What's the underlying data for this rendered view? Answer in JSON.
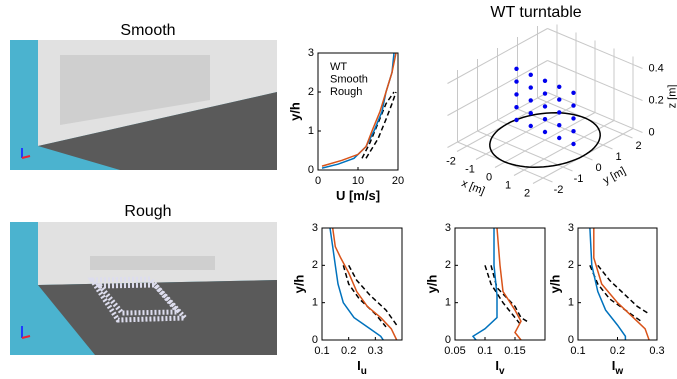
{
  "renders": [
    {
      "title": "Smooth",
      "color": "#1f6fb5"
    },
    {
      "title": "Rough",
      "color": "#d95319"
    }
  ],
  "chart_data": [
    {
      "type": "profile",
      "xlabel": "U [m/s]",
      "ylabel": "y/h",
      "xlim": [
        0,
        20
      ],
      "xticks": [
        0,
        10,
        20
      ],
      "ylim": [
        0,
        3
      ],
      "yticks": [
        0,
        1,
        2,
        3
      ],
      "legend": "upper left",
      "series": [
        {
          "name": "WT",
          "color": "#000000",
          "dashed": true,
          "x": [
            11,
            13,
            15,
            17,
            19,
            null,
            12,
            15,
            17,
            18.5,
            19.5
          ],
          "values": [
            0.3,
            0.7,
            1.2,
            1.7,
            2.0,
            null,
            0.3,
            0.8,
            1.3,
            1.7,
            2.0
          ]
        },
        {
          "name": "Smooth",
          "color": "#0072bd",
          "x": [
            1,
            5,
            9,
            12,
            14,
            16,
            17,
            18.5,
            19
          ],
          "values": [
            0.05,
            0.15,
            0.3,
            0.6,
            1.0,
            1.5,
            2.0,
            2.5,
            3.0
          ]
        },
        {
          "name": "Rough",
          "color": "#d95319",
          "x": [
            1,
            6,
            10,
            12,
            13.5,
            15.5,
            17,
            18.5,
            19.5
          ],
          "values": [
            0.1,
            0.25,
            0.4,
            0.6,
            1.0,
            1.5,
            2.0,
            2.5,
            3.0
          ]
        }
      ]
    },
    {
      "type": "scatter3d",
      "title": "WT turntable",
      "xlabel": "x [m]",
      "ylabel": "y [m]",
      "zlabel": "z [m]",
      "xlim": [
        -2.5,
        2.5
      ],
      "ylim": [
        -2.5,
        2.5
      ],
      "zlim": [
        0,
        0.45
      ],
      "xticks": [
        -2,
        -1,
        0,
        1,
        2
      ],
      "yticks": [
        -2,
        -1,
        0,
        1,
        2
      ],
      "zticks": [
        0,
        0.2,
        0.4
      ],
      "series": [
        {
          "color": "#0000ee",
          "x": [
            -1.5,
            -1.5,
            -1.5,
            -1.5,
            -1.5,
            -0.75,
            -0.75,
            -0.75,
            -0.75,
            -0.75,
            0,
            0,
            0,
            0,
            0,
            0.75,
            0.75,
            0.75,
            0.75,
            0.75,
            1.5,
            1.5,
            1.5,
            1.5,
            1.5
          ],
          "y": [
            0,
            0,
            0,
            0,
            0,
            0,
            0,
            0,
            0,
            0,
            0,
            0,
            0,
            0,
            0,
            0,
            0,
            0,
            0,
            0,
            0,
            0,
            0,
            0,
            0
          ],
          "values": [
            0.05,
            0.13,
            0.21,
            0.29,
            0.37,
            0.05,
            0.13,
            0.21,
            0.29,
            0.37,
            0.05,
            0.13,
            0.21,
            0.29,
            0.37,
            0.05,
            0.13,
            0.21,
            0.29,
            0.37,
            0.05,
            0.13,
            0.21,
            0.29,
            0.37
          ]
        }
      ]
    },
    {
      "type": "profile",
      "xlabel": "I",
      "xlabel_sub": "u",
      "ylabel": "y/h",
      "xlim": [
        0.1,
        0.4
      ],
      "xticks": [
        0.1,
        0.2,
        0.3
      ],
      "ylim": [
        0,
        3
      ],
      "yticks": [
        0,
        1,
        2,
        3
      ],
      "series": [
        {
          "color": "#000000",
          "dashed": true,
          "x": [
            0.18,
            0.2,
            0.24,
            0.3,
            0.34,
            null,
            0.2,
            0.23,
            0.28,
            0.34,
            0.38
          ],
          "values": [
            2.0,
            1.5,
            1.1,
            0.7,
            0.35,
            null,
            2.0,
            1.6,
            1.2,
            0.8,
            0.4
          ]
        },
        {
          "color": "#0072bd",
          "x": [
            0.13,
            0.14,
            0.15,
            0.16,
            0.18,
            0.22,
            0.28,
            0.32,
            0.33
          ],
          "values": [
            3.0,
            2.5,
            2.0,
            1.5,
            1.0,
            0.6,
            0.3,
            0.1,
            0
          ]
        },
        {
          "color": "#d95319",
          "x": [
            0.14,
            0.15,
            0.17,
            0.2,
            0.23,
            0.27,
            0.32,
            0.36,
            0.38
          ],
          "values": [
            3.0,
            2.5,
            2.2,
            1.8,
            1.3,
            0.9,
            0.6,
            0.3,
            0
          ]
        }
      ]
    },
    {
      "type": "profile",
      "xlabel": "I",
      "xlabel_sub": "v",
      "ylabel": "y/h",
      "xlim": [
        0.05,
        0.2
      ],
      "xticks": [
        0.05,
        0.1,
        0.15
      ],
      "ylim": [
        0,
        3
      ],
      "yticks": [
        0,
        1,
        2,
        3
      ],
      "series": [
        {
          "color": "#000000",
          "dashed": true,
          "x": [
            0.1,
            0.11,
            0.13,
            0.15,
            0.16,
            null,
            0.11,
            0.12,
            0.15,
            0.16,
            0.17
          ],
          "values": [
            2.0,
            1.5,
            1.0,
            0.6,
            0.4,
            null,
            2.0,
            1.4,
            0.9,
            0.6,
            0.5
          ]
        },
        {
          "color": "#0072bd",
          "x": [
            0.115,
            0.115,
            0.12,
            0.12,
            0.1,
            0.08,
            0.085
          ],
          "values": [
            3.0,
            2.0,
            1.2,
            0.6,
            0.3,
            0.1,
            0
          ]
        },
        {
          "color": "#d95319",
          "x": [
            0.12,
            0.125,
            0.13,
            0.15,
            0.16,
            0.15,
            0.16
          ],
          "values": [
            3.0,
            2.0,
            1.3,
            0.8,
            0.5,
            0.2,
            0
          ]
        }
      ]
    },
    {
      "type": "profile",
      "xlabel": "I",
      "xlabel_sub": "w",
      "ylabel": "y/h",
      "xlim": [
        0.1,
        0.3
      ],
      "xticks": [
        0.1,
        0.2,
        0.3
      ],
      "ylim": [
        0,
        3
      ],
      "yticks": [
        0,
        1,
        2,
        3
      ],
      "series": [
        {
          "color": "#000000",
          "dashed": true,
          "x": [
            0.13,
            0.15,
            0.18,
            0.22,
            0.26,
            null,
            0.15,
            0.18,
            0.22,
            0.25,
            0.28
          ],
          "values": [
            2.0,
            1.5,
            1.1,
            0.8,
            0.5,
            null,
            2.0,
            1.6,
            1.2,
            0.9,
            0.7
          ]
        },
        {
          "color": "#0072bd",
          "x": [
            0.13,
            0.135,
            0.15,
            0.17,
            0.2,
            0.22,
            0.22
          ],
          "values": [
            3.0,
            2.0,
            1.3,
            0.8,
            0.4,
            0.1,
            0
          ]
        },
        {
          "color": "#d95319",
          "x": [
            0.14,
            0.14,
            0.16,
            0.2,
            0.24,
            0.27,
            0.28
          ],
          "values": [
            3.0,
            2.2,
            1.5,
            1.0,
            0.6,
            0.3,
            0
          ]
        }
      ]
    }
  ]
}
